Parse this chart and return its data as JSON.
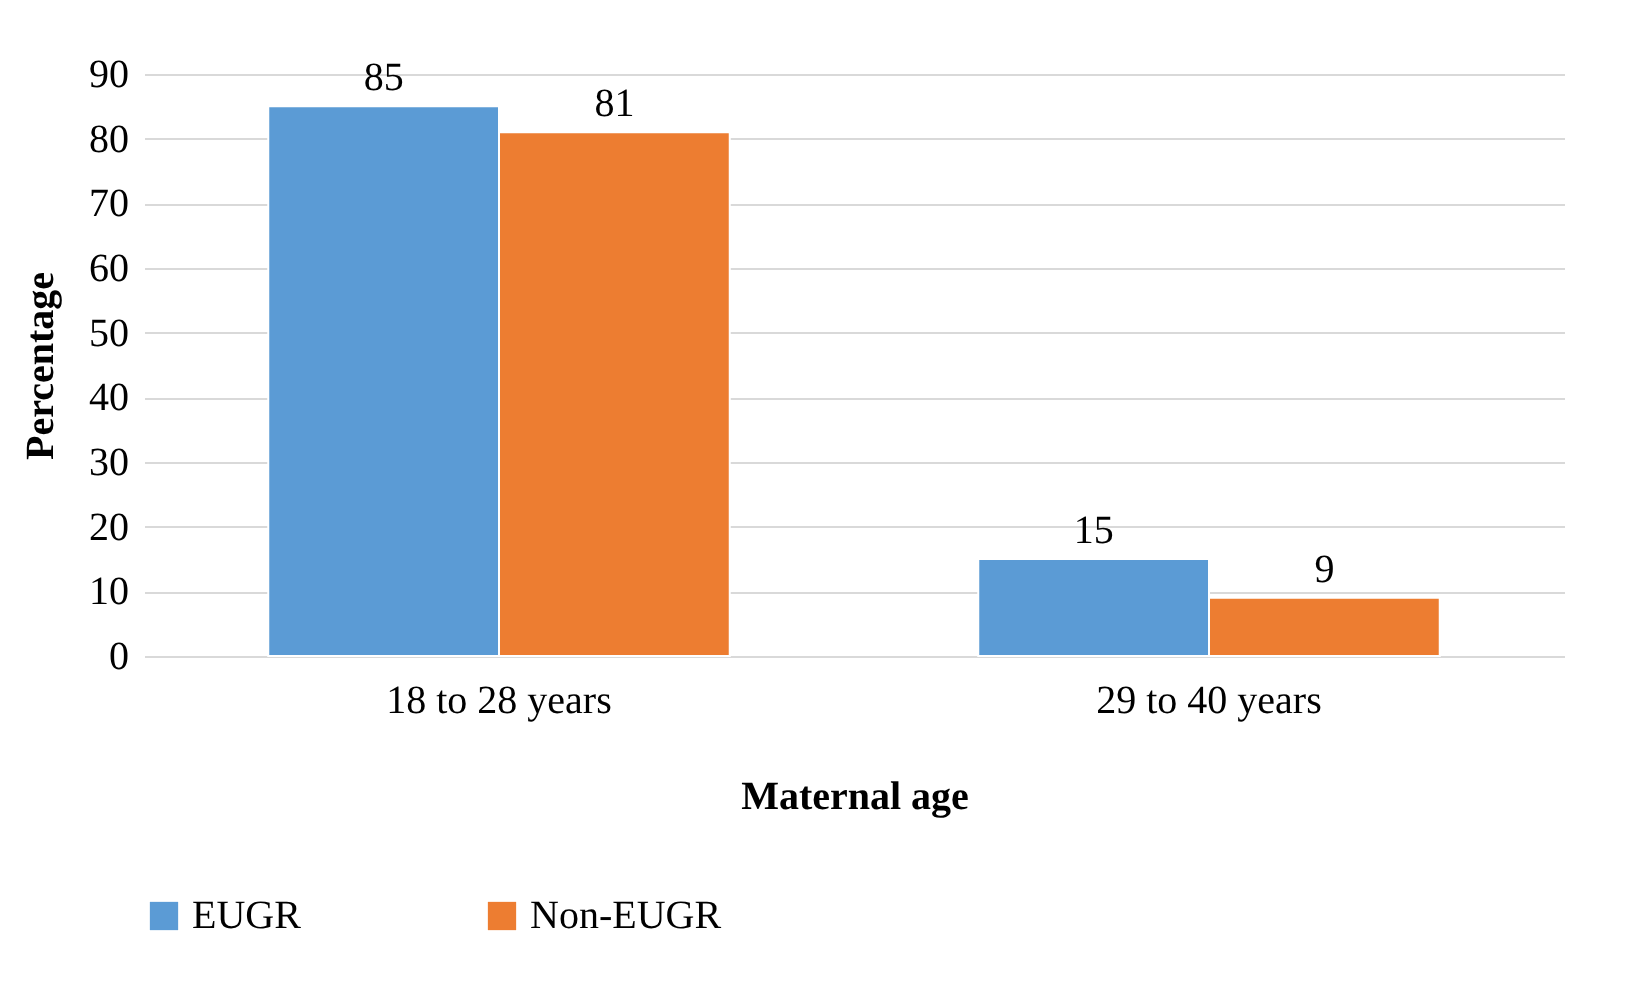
{
  "chart_data": {
    "type": "bar",
    "xlabel": "Maternal age",
    "ylabel": "Percentage",
    "categories": [
      "18 to 28 years",
      "29 to 40 years"
    ],
    "series": [
      {
        "name": "EUGR",
        "color": "#5b9bd5",
        "values": [
          85,
          15
        ]
      },
      {
        "name": "Non-EUGR",
        "color": "#ed7d31",
        "values": [
          81,
          9
        ]
      }
    ],
    "ylim": [
      0,
      90
    ],
    "yticks": [
      0,
      10,
      20,
      30,
      40,
      50,
      60,
      70,
      80,
      90
    ],
    "grid": "y",
    "legend": "bottom",
    "data_labels": true
  }
}
